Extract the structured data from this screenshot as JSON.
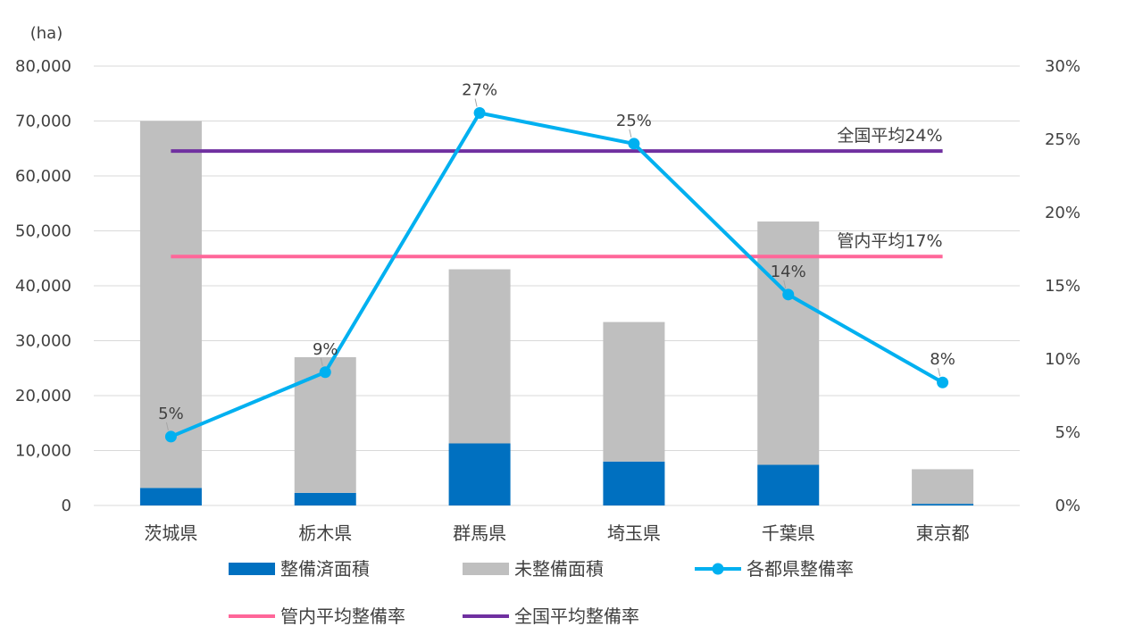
{
  "chart_data": {
    "type": "bar",
    "stacked": true,
    "categories": [
      "茨城県",
      "栃木県",
      "群馬県",
      "埼玉県",
      "千葉県",
      "東京都"
    ],
    "y_unit_label": "(ha)",
    "y_left": {
      "min": 0,
      "max": 80000,
      "step": 10000,
      "tick_labels": [
        "0",
        "10,000",
        "20,000",
        "30,000",
        "40,000",
        "50,000",
        "60,000",
        "70,000",
        "80,000"
      ]
    },
    "y_right": {
      "min": 0,
      "max": 0.3,
      "step": 0.05,
      "tick_labels": [
        "0%",
        "5%",
        "10%",
        "15%",
        "20%",
        "25%",
        "30%"
      ]
    },
    "grid": true,
    "bar_series": [
      {
        "name": "整備済面積",
        "color": "#0070C0",
        "values": [
          3200,
          2300,
          11300,
          8000,
          7400,
          300
        ]
      },
      {
        "name": "未整備面積",
        "color": "#BFBFBF",
        "values": [
          66800,
          24700,
          31700,
          25400,
          44300,
          6300
        ]
      }
    ],
    "line_series": {
      "name": "各都県整備率",
      "color": "#00B0F0",
      "values": [
        0.047,
        0.091,
        0.268,
        0.247,
        0.144,
        0.084
      ],
      "labels": [
        "5%",
        "9%",
        "27%",
        "25%",
        "14%",
        "8%"
      ]
    },
    "reference_lines": [
      {
        "name": "管内平均整備率",
        "color": "#FF6699",
        "value": 0.17,
        "label": "管内平均17%"
      },
      {
        "name": "全国平均整備率",
        "color": "#7030A0",
        "value": 0.242,
        "label": "全国平均24%"
      }
    ],
    "legend": {
      "placement": "bottom",
      "items": [
        "整備済面積",
        "未整備面積",
        "各都県整備率",
        "管内平均整備率",
        "全国平均整備率"
      ]
    }
  }
}
